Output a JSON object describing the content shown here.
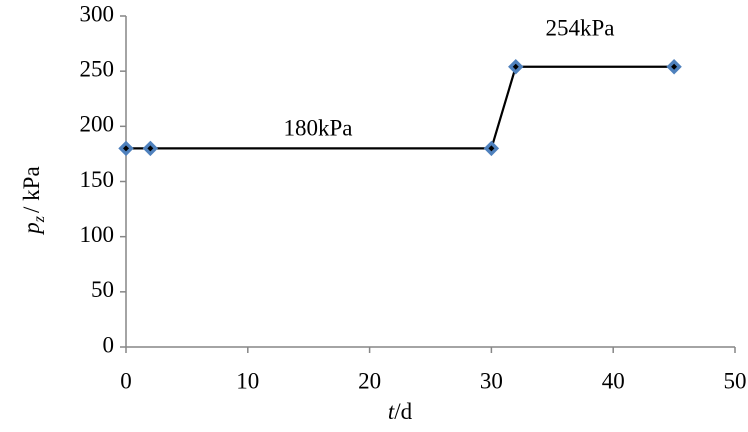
{
  "chart_data": {
    "type": "line",
    "annotations": [
      "180kPa",
      "254kPa"
    ],
    "y_label_parts": [
      "p",
      "z",
      "/ kPa"
    ],
    "x_label_parts": [
      "t",
      "/d"
    ],
    "x": [
      0,
      2,
      30,
      32,
      45
    ],
    "series": [
      {
        "color": "#000000",
        "marker_color": "#4f81bd",
        "values": [
          180,
          180,
          180,
          254,
          254
        ]
      }
    ],
    "xlim": [
      0,
      50
    ],
    "xticks": [
      0,
      10,
      20,
      30,
      40,
      50
    ],
    "ylim": [
      0,
      300
    ],
    "yticks": [
      0,
      50,
      100,
      150,
      200,
      250,
      300
    ],
    "grid": false
  }
}
